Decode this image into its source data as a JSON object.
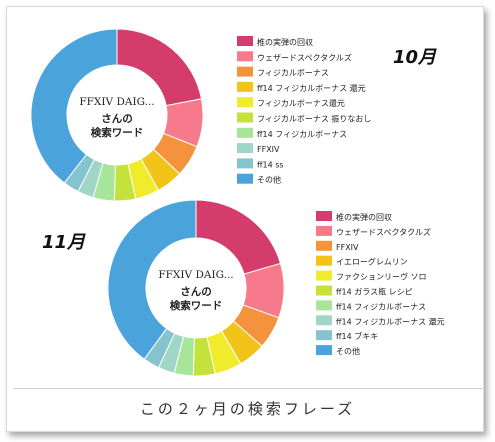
{
  "caption": "この２ヶ月の検索フレーズ",
  "chart_data": [
    {
      "type": "pie",
      "month_label": "10月",
      "center_label_top": "FFXIV DAIG...",
      "center_label_line1": "さんの",
      "center_label_line2": "検索ワード",
      "slices": [
        {
          "label": "椎の実弾の回収",
          "value": 22.0,
          "color": "#d33c6b"
        },
        {
          "label": "ウェザードスペクタクルズ",
          "value": 9.0,
          "color": "#f77a8c"
        },
        {
          "label": "フィジカルボーナス",
          "value": 6.0,
          "color": "#f5923e"
        },
        {
          "label": "ff14 フィジカルボーナス 還元",
          "value": 5.0,
          "color": "#f2c41a"
        },
        {
          "label": "フィジカルボーナス還元",
          "value": 4.5,
          "color": "#f0ec2c"
        },
        {
          "label": "フィジカルボーナス 振りなおし",
          "value": 4.0,
          "color": "#c4e23a"
        },
        {
          "label": "ff14 フィジカルボーナス",
          "value": 4.0,
          "color": "#a7e59a"
        },
        {
          "label": "FFXIV",
          "value": 3.0,
          "color": "#9fd6c8"
        },
        {
          "label": "ff14 ss",
          "value": 3.0,
          "color": "#85c3cf"
        },
        {
          "label": "その他",
          "value": 39.5,
          "color": "#4aa3db"
        }
      ]
    },
    {
      "type": "pie",
      "month_label": "11月",
      "center_label_top": "FFXIV DAIG...",
      "center_label_line1": "さんの",
      "center_label_line2": "検索ワード",
      "slices": [
        {
          "label": "椎の実弾の回収",
          "value": 20.5,
          "color": "#d33c6b"
        },
        {
          "label": "ウェザードスペクタクルズ",
          "value": 10.0,
          "color": "#f77a8c"
        },
        {
          "label": "FFXIV",
          "value": 6.0,
          "color": "#f5923e"
        },
        {
          "label": "イエローグレムリン",
          "value": 5.0,
          "color": "#f2c41a"
        },
        {
          "label": "ファクションリーヴ ソロ",
          "value": 5.0,
          "color": "#f0ec2c"
        },
        {
          "label": "ff14 ガラス瓶 レシピ",
          "value": 4.0,
          "color": "#c4e23a"
        },
        {
          "label": "ff14 フィジカルボーナス",
          "value": 3.5,
          "color": "#a7e59a"
        },
        {
          "label": "ff14 フィジカルボーナス 還元",
          "value": 3.0,
          "color": "#9fd6c8"
        },
        {
          "label": "ff14 ブキキ",
          "value": 3.0,
          "color": "#85c3cf"
        },
        {
          "label": "その他",
          "value": 40.0,
          "color": "#4aa3db"
        }
      ]
    }
  ]
}
